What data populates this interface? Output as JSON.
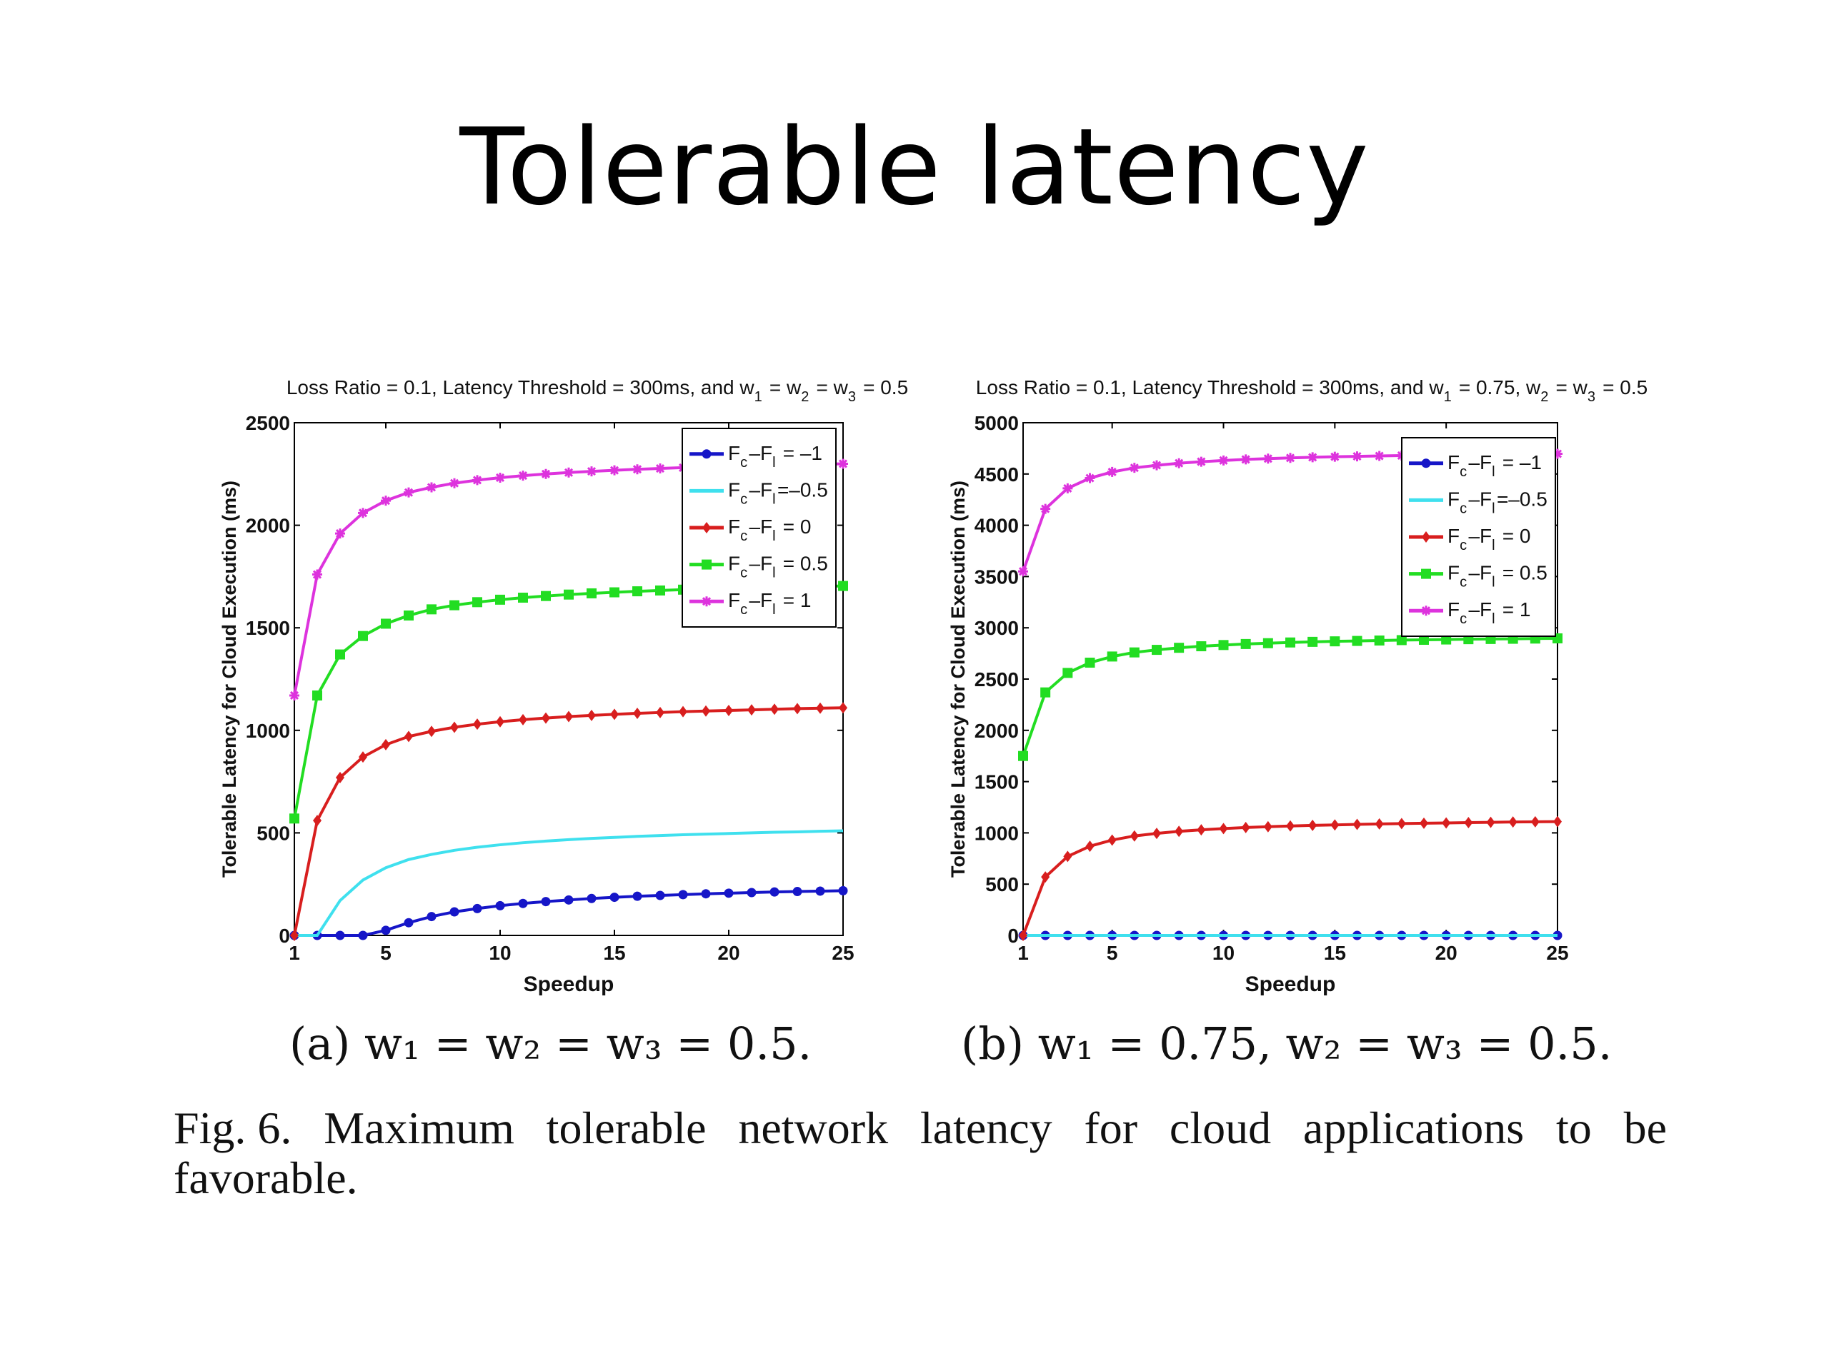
{
  "slide": {
    "title": "Tolerable latency"
  },
  "captions": {
    "sub_a": "(a) w₁ = w₂ = w₃ = 0.5.",
    "sub_b": "(b) w₁ = 0.75, w₂ = w₃ = 0.5.",
    "fig_line1_words": [
      "Fig. 6.",
      "Maximum",
      "tolerable",
      "network",
      "latency",
      "for",
      "cloud",
      "applications",
      "to",
      "be"
    ],
    "fig_line2": "favorable."
  },
  "chart_data": [
    {
      "type": "line",
      "title": "Loss Ratio = 0.1, Latency Threshold = 300ms, and w1 = w2 = w3 = 0.5",
      "xlabel": "Speedup",
      "ylabel": "Tolerable Latency for Cloud Execution (ms)",
      "xlim": [
        1,
        25
      ],
      "ylim": [
        0,
        2500
      ],
      "xticks": [
        1,
        5,
        10,
        15,
        20,
        25
      ],
      "yticks": [
        0,
        500,
        1000,
        1500,
        2000,
        2500
      ],
      "grid": false,
      "legend_position": "top-right",
      "x": [
        1,
        2,
        3,
        4,
        5,
        6,
        7,
        8,
        9,
        10,
        11,
        12,
        13,
        14,
        15,
        16,
        17,
        18,
        19,
        20,
        21,
        22,
        23,
        24,
        25
      ],
      "series": [
        {
          "name": "Fc-Fl = -1",
          "color": "#1616c8",
          "marker": "circle",
          "values": [
            0,
            0,
            0,
            0,
            25,
            62,
            92,
            115,
            131,
            145,
            156,
            165,
            173,
            180,
            186,
            191,
            195,
            199,
            203,
            206,
            209,
            212,
            214,
            216,
            218
          ]
        },
        {
          "name": "Fc-Fl=-0.5",
          "color": "#3fe0ee",
          "marker": "none",
          "values": [
            0,
            0,
            170,
            270,
            330,
            370,
            395,
            415,
            430,
            442,
            452,
            460,
            467,
            473,
            478,
            483,
            487,
            491,
            494,
            497,
            500,
            503,
            505,
            508,
            510
          ]
        },
        {
          "name": "Fc-Fl = 0",
          "color": "#d81e1e",
          "marker": "diamond",
          "values": [
            0,
            560,
            770,
            870,
            930,
            970,
            995,
            1015,
            1030,
            1042,
            1052,
            1060,
            1067,
            1073,
            1078,
            1083,
            1087,
            1091,
            1094,
            1097,
            1100,
            1103,
            1106,
            1108,
            1110
          ]
        },
        {
          "name": "Fc-Fl = 0.5",
          "color": "#22dd22",
          "marker": "square",
          "values": [
            570,
            1170,
            1370,
            1460,
            1520,
            1560,
            1590,
            1610,
            1625,
            1637,
            1647,
            1655,
            1662,
            1668,
            1673,
            1678,
            1682,
            1686,
            1689,
            1692,
            1695,
            1698,
            1700,
            1702,
            1704
          ]
        },
        {
          "name": "Fc-Fl = 1",
          "color": "#dd33dd",
          "marker": "star",
          "values": [
            1170,
            1760,
            1960,
            2060,
            2120,
            2160,
            2185,
            2205,
            2220,
            2232,
            2242,
            2250,
            2257,
            2263,
            2268,
            2273,
            2277,
            2281,
            2284,
            2287,
            2290,
            2293,
            2295,
            2297,
            2300
          ]
        }
      ]
    },
    {
      "type": "line",
      "title": "Loss Ratio = 0.1, Latency Threshold = 300ms, and w1 = 0.75, w2 = w3 = 0.5",
      "xlabel": "Speedup",
      "ylabel": "Tolerable Latency for Cloud Execution (ms)",
      "xlim": [
        1,
        25
      ],
      "ylim": [
        0,
        5000
      ],
      "xticks": [
        1,
        5,
        10,
        15,
        20,
        25
      ],
      "yticks": [
        0,
        500,
        1000,
        1500,
        2000,
        2500,
        3000,
        3500,
        4000,
        4500,
        5000
      ],
      "grid": false,
      "legend_position": "top-right",
      "x": [
        1,
        2,
        3,
        4,
        5,
        6,
        7,
        8,
        9,
        10,
        11,
        12,
        13,
        14,
        15,
        16,
        17,
        18,
        19,
        20,
        21,
        22,
        23,
        24,
        25
      ],
      "series": [
        {
          "name": "Fc-Fl = -1",
          "color": "#1616c8",
          "marker": "circle",
          "values": [
            0,
            0,
            0,
            0,
            0,
            0,
            0,
            0,
            0,
            0,
            0,
            0,
            0,
            0,
            0,
            0,
            0,
            0,
            0,
            0,
            0,
            0,
            0,
            0,
            0
          ]
        },
        {
          "name": "Fc-Fl=-0.5",
          "color": "#3fe0ee",
          "marker": "none",
          "values": [
            0,
            0,
            0,
            0,
            0,
            0,
            0,
            0,
            0,
            0,
            0,
            0,
            0,
            0,
            0,
            0,
            0,
            0,
            0,
            0,
            0,
            0,
            0,
            0,
            0
          ]
        },
        {
          "name": "Fc-Fl = 0",
          "color": "#d81e1e",
          "marker": "diamond",
          "values": [
            0,
            570,
            770,
            870,
            930,
            970,
            995,
            1015,
            1030,
            1042,
            1052,
            1060,
            1067,
            1073,
            1078,
            1083,
            1087,
            1091,
            1094,
            1097,
            1100,
            1103,
            1106,
            1108,
            1110
          ]
        },
        {
          "name": "Fc-Fl = 0.5",
          "color": "#22dd22",
          "marker": "square",
          "values": [
            1750,
            2370,
            2560,
            2660,
            2720,
            2760,
            2785,
            2805,
            2820,
            2832,
            2842,
            2850,
            2857,
            2863,
            2868,
            2872,
            2876,
            2880,
            2883,
            2886,
            2889,
            2891,
            2893,
            2895,
            2897
          ]
        },
        {
          "name": "Fc-Fl = 1",
          "color": "#dd33dd",
          "marker": "star",
          "values": [
            3550,
            4160,
            4360,
            4460,
            4520,
            4560,
            4585,
            4605,
            4620,
            4632,
            4642,
            4650,
            4657,
            4663,
            4668,
            4672,
            4676,
            4680,
            4683,
            4686,
            4689,
            4691,
            4693,
            4695,
            4697
          ]
        }
      ]
    }
  ]
}
